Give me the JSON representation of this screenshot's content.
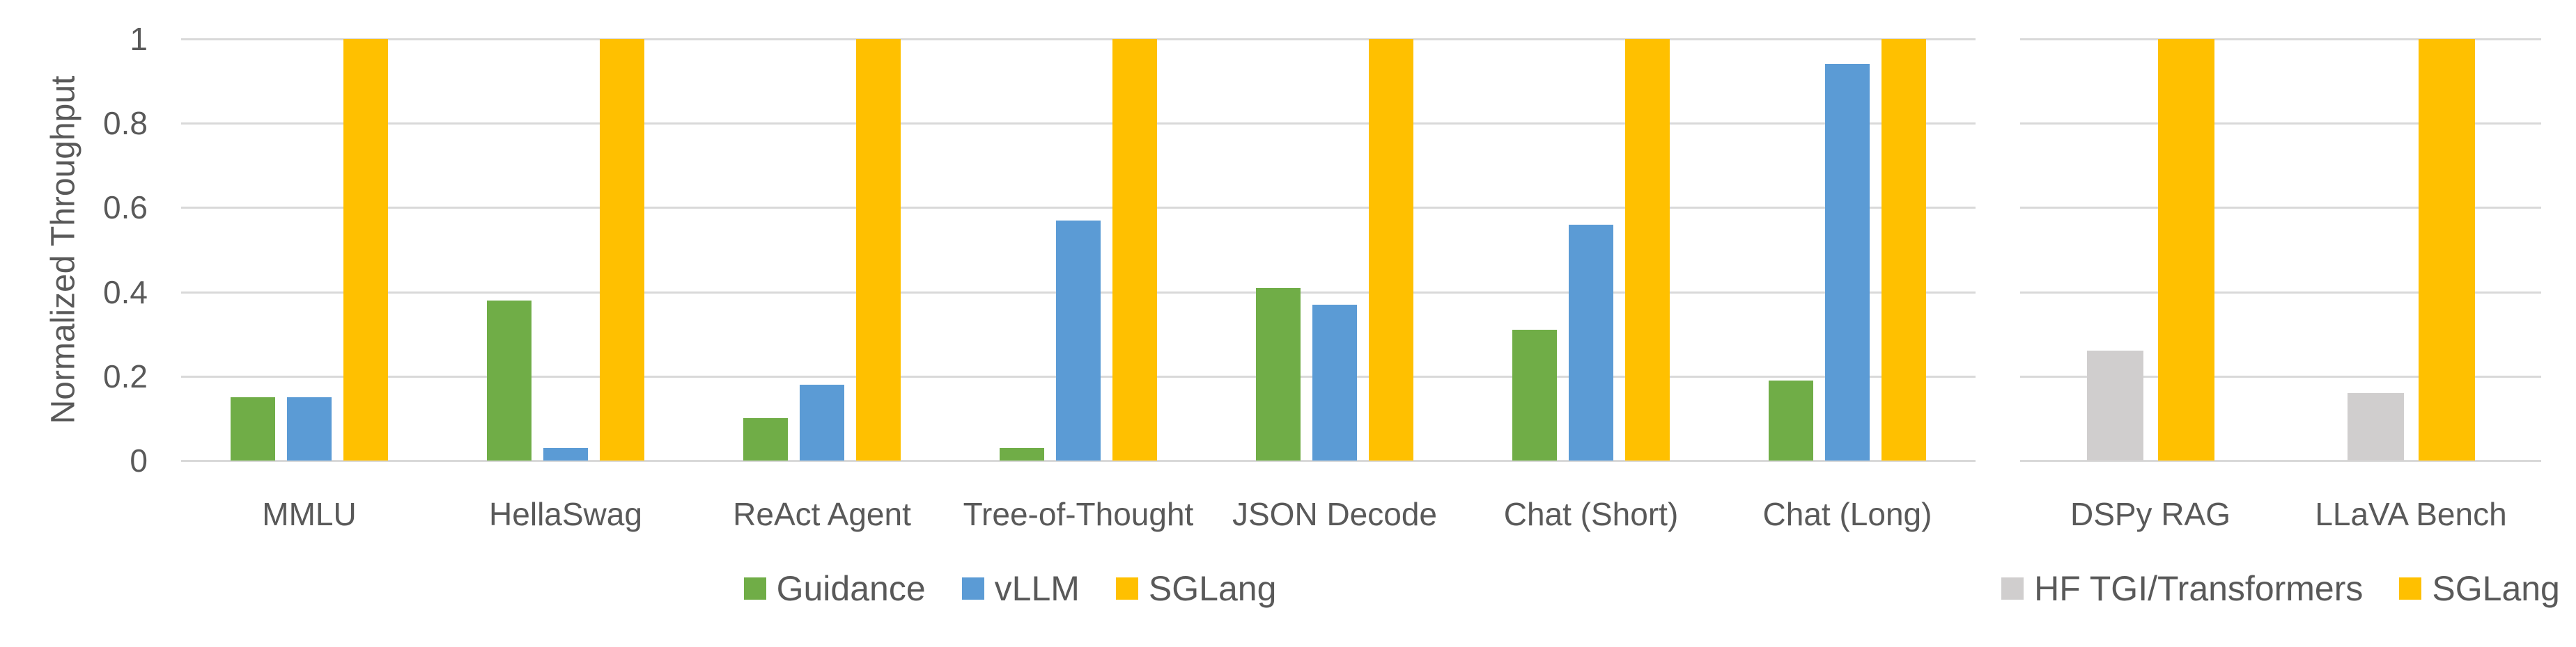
{
  "figure": {
    "background": "#FFFFFF",
    "text_color": "#595959",
    "gridline_color": "#D9D9D9"
  },
  "chart_data": [
    {
      "type": "bar",
      "title": "",
      "xlabel": "",
      "ylabel": "Normalized Throughput",
      "ylim": [
        0,
        1
      ],
      "yticks": [
        1,
        0.8,
        0.6,
        0.4,
        0.2,
        0
      ],
      "ytick_labels": [
        "1",
        "0.8",
        "0.6",
        "0.4",
        "0.2",
        "0"
      ],
      "grid": "horizontal",
      "legend_position": "bottom",
      "categories": [
        "MMLU",
        "HellaSwag",
        "ReAct Agent",
        "Tree-of-Thought",
        "JSON Decode",
        "Chat (Short)",
        "Chat (Long)"
      ],
      "series": [
        {
          "name": "Guidance",
          "color": "#70AD47",
          "values": [
            0.15,
            0.38,
            0.1,
            0.03,
            0.41,
            0.31,
            0.19
          ]
        },
        {
          "name": "vLLM",
          "color": "#5B9BD5",
          "values": [
            0.15,
            0.03,
            0.18,
            0.57,
            0.37,
            0.56,
            0.94
          ]
        },
        {
          "name": "SGLang",
          "color": "#FFC000",
          "values": [
            1,
            1,
            1,
            1,
            1,
            1,
            1
          ]
        }
      ]
    },
    {
      "type": "bar",
      "title": "",
      "xlabel": "",
      "ylabel": "",
      "ylim": [
        0,
        1
      ],
      "yticks": [
        1,
        0.8,
        0.6,
        0.4,
        0.2,
        0
      ],
      "ytick_labels": [],
      "grid": "horizontal",
      "legend_position": "bottom",
      "categories": [
        "DSPy RAG",
        "LLaVA Bench"
      ],
      "series": [
        {
          "name": "HF TGI/Transformers",
          "color": "#D0CECE",
          "values": [
            0.26,
            0.16
          ]
        },
        {
          "name": "SGLang",
          "color": "#FFC000",
          "values": [
            1,
            1
          ]
        }
      ]
    }
  ]
}
